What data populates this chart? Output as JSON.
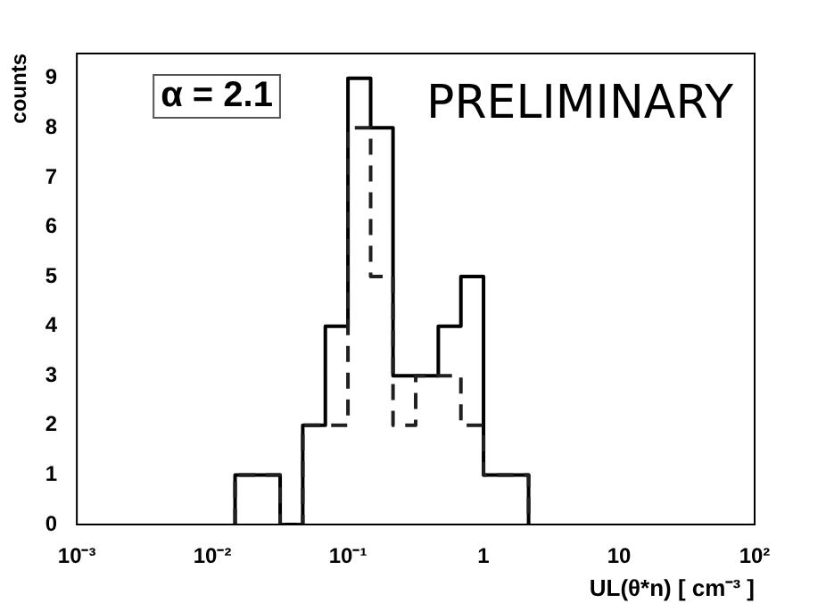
{
  "chart_data": {
    "type": "histogram",
    "xlabel": "UL(θ*n) [ cm⁻³ ]",
    "ylabel": "counts",
    "bins": [
      0.0147,
      0.0215,
      0.0316,
      0.0464,
      0.0681,
      0.1,
      0.147,
      0.215,
      0.316,
      0.464,
      0.681,
      1,
      1.47,
      2.15
    ],
    "series": [
      {
        "color": "#000000",
        "line_style": "solid",
        "values": [
          1,
          1,
          0,
          2,
          4,
          9,
          8,
          3,
          3,
          4,
          5,
          1,
          1
        ]
      },
      {
        "color": "#202020",
        "line_style": "dashed",
        "values": [
          1,
          1,
          0,
          2,
          2,
          8,
          5,
          2,
          3,
          3,
          2,
          1,
          1
        ]
      }
    ],
    "log": "x",
    "xlim": [
      0.001,
      100
    ],
    "xticks": [
      {
        "value": 0.001,
        "label": "10⁻³"
      },
      {
        "value": 0.01,
        "label": "10⁻²"
      },
      {
        "value": 0.1,
        "label": "10⁻¹"
      },
      1,
      10,
      {
        "value": 100,
        "label": "10²"
      }
    ],
    "ylim": [
      0,
      9.5
    ],
    "yticks": [
      0,
      1,
      2,
      3,
      4,
      5,
      6,
      7,
      8,
      9
    ],
    "grid": false,
    "legend": false,
    "annotations": [
      "α = 2.1",
      "PRELIMINARY"
    ]
  }
}
